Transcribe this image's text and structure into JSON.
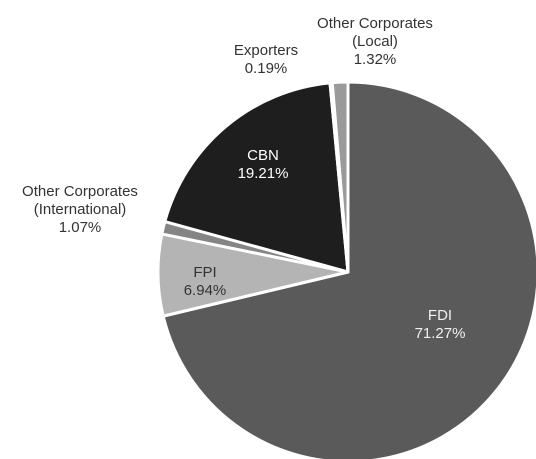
{
  "chart_data": {
    "type": "pie",
    "categories": [
      "FDI",
      "FPI",
      "Other Corporates (International)",
      "CBN",
      "Exporters",
      "Other Corporates (Local)"
    ],
    "values": [
      71.27,
      6.94,
      1.07,
      19.21,
      0.19,
      1.32
    ],
    "value_labels": [
      "71.27%",
      "6.94%",
      "1.07%",
      "19.21%",
      "0.19%",
      "1.32%"
    ],
    "colors": [
      "#5a5a5a",
      "#b4b4b4",
      "#858585",
      "#1e1e1e",
      "#c8c8c8",
      "#9a9a9a"
    ]
  }
}
